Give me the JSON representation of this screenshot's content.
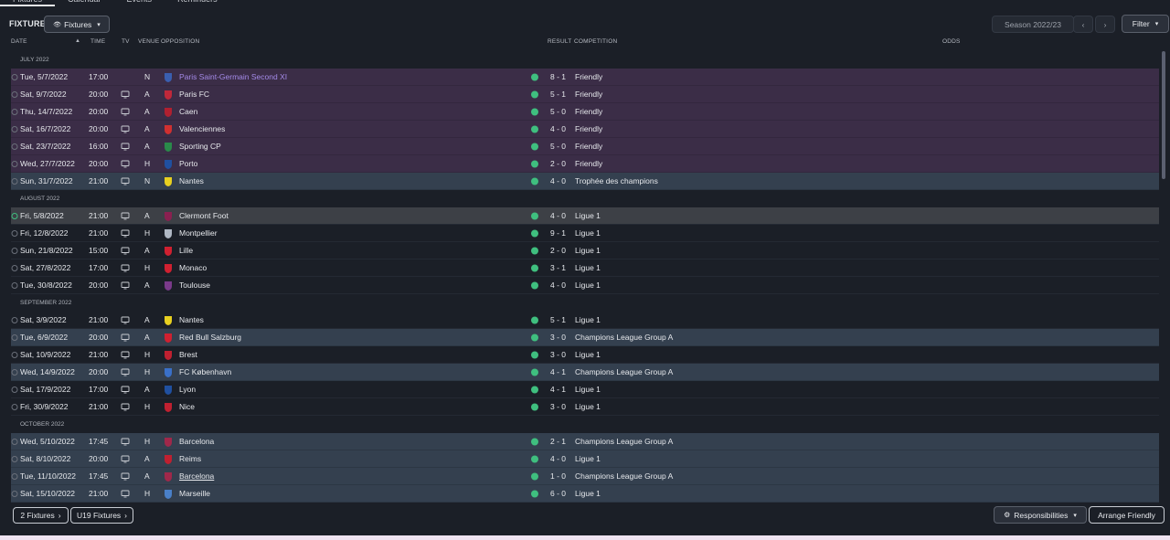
{
  "tabs": [
    "Fixtures",
    "Calendar",
    "Events",
    "Reminders"
  ],
  "header": {
    "title": "FIXTURES",
    "view": "Fixtures",
    "season": "Season 2022/23",
    "filter": "Filter"
  },
  "columns": [
    "DATE",
    "TIME",
    "TV",
    "VENUE",
    "OPPOSITION",
    "RESULT",
    "COMPETITION",
    "ODDS"
  ],
  "months": [
    {
      "label": "JULY 2022",
      "fixtures": [
        {
          "date": "Tue, 5/7/2022",
          "time": "17:00",
          "tv": false,
          "venue": "N",
          "opposition": "Paris Saint-Germain Second XI",
          "result": "8 - 1",
          "competition": "Friendly"
        },
        {
          "date": "Sat, 9/7/2022",
          "time": "20:00",
          "tv": true,
          "venue": "A",
          "opposition": "Paris FC",
          "result": "5 - 1",
          "competition": "Friendly"
        },
        {
          "date": "Thu, 14/7/2022",
          "time": "20:00",
          "tv": true,
          "venue": "A",
          "opposition": "Caen",
          "result": "5 - 0",
          "competition": "Friendly"
        },
        {
          "date": "Sat, 16/7/2022",
          "time": "20:00",
          "tv": true,
          "venue": "A",
          "opposition": "Valenciennes",
          "result": "4 - 0",
          "competition": "Friendly"
        },
        {
          "date": "Sat, 23/7/2022",
          "time": "16:00",
          "tv": true,
          "venue": "A",
          "opposition": "Sporting CP",
          "result": "5 - 0",
          "competition": "Friendly"
        },
        {
          "date": "Wed, 27/7/2022",
          "time": "20:00",
          "tv": true,
          "venue": "H",
          "opposition": "Porto",
          "result": "2 - 0",
          "competition": "Friendly"
        },
        {
          "date": "Sun, 31/7/2022",
          "time": "21:00",
          "tv": true,
          "venue": "N",
          "opposition": "Nantes",
          "result": "4 - 0",
          "competition": "Trophée des champions"
        }
      ]
    },
    {
      "label": "AUGUST 2022",
      "fixtures": [
        {
          "date": "Fri, 5/8/2022",
          "time": "21:00",
          "tv": true,
          "venue": "A",
          "opposition": "Clermont Foot",
          "result": "4 - 0",
          "competition": "Ligue 1"
        },
        {
          "date": "Fri, 12/8/2022",
          "time": "21:00",
          "tv": true,
          "venue": "H",
          "opposition": "Montpellier",
          "result": "9 - 1",
          "competition": "Ligue 1"
        },
        {
          "date": "Sun, 21/8/2022",
          "time": "15:00",
          "tv": true,
          "venue": "A",
          "opposition": "Lille",
          "result": "2 - 0",
          "competition": "Ligue 1"
        },
        {
          "date": "Sat, 27/8/2022",
          "time": "17:00",
          "tv": true,
          "venue": "H",
          "opposition": "Monaco",
          "result": "3 - 1",
          "competition": "Ligue 1"
        },
        {
          "date": "Tue, 30/8/2022",
          "time": "20:00",
          "tv": true,
          "venue": "A",
          "opposition": "Toulouse",
          "result": "4 - 0",
          "competition": "Ligue 1"
        }
      ]
    },
    {
      "label": "SEPTEMBER 2022",
      "fixtures": [
        {
          "date": "Sat, 3/9/2022",
          "time": "21:00",
          "tv": true,
          "venue": "A",
          "opposition": "Nantes",
          "result": "5 - 1",
          "competition": "Ligue 1"
        },
        {
          "date": "Tue, 6/9/2022",
          "time": "20:00",
          "tv": true,
          "venue": "A",
          "opposition": "Red Bull Salzburg",
          "result": "3 - 0",
          "competition": "Champions League Group A"
        },
        {
          "date": "Sat, 10/9/2022",
          "time": "21:00",
          "tv": true,
          "venue": "H",
          "opposition": "Brest",
          "result": "3 - 0",
          "competition": "Ligue 1"
        },
        {
          "date": "Wed, 14/9/2022",
          "time": "20:00",
          "tv": true,
          "venue": "H",
          "opposition": "FC København",
          "result": "4 - 1",
          "competition": "Champions League Group A"
        },
        {
          "date": "Sat, 17/9/2022",
          "time": "17:00",
          "tv": true,
          "venue": "A",
          "opposition": "Lyon",
          "result": "4 - 1",
          "competition": "Ligue 1"
        },
        {
          "date": "Fri, 30/9/2022",
          "time": "21:00",
          "tv": true,
          "venue": "H",
          "opposition": "Nice",
          "result": "3 - 0",
          "competition": "Ligue 1"
        }
      ]
    },
    {
      "label": "OCTOBER 2022",
      "fixtures": [
        {
          "date": "Wed, 5/10/2022",
          "time": "17:45",
          "tv": true,
          "venue": "H",
          "opposition": "Barcelona",
          "result": "2 - 1",
          "competition": "Champions League Group A"
        },
        {
          "date": "Sat, 8/10/2022",
          "time": "20:00",
          "tv": true,
          "venue": "A",
          "opposition": "Reims",
          "result": "4 - 0",
          "competition": "Ligue 1"
        },
        {
          "date": "Tue, 11/10/2022",
          "time": "17:45",
          "tv": true,
          "venue": "A",
          "opposition": "Barcelona",
          "result": "1 - 0",
          "competition": "Champions League Group A"
        },
        {
          "date": "Sat, 15/10/2022",
          "time": "21:00",
          "tv": true,
          "venue": "H",
          "opposition": "Marseille",
          "result": "6 - 0",
          "competition": "Ligue 1"
        }
      ]
    }
  ],
  "footer": {
    "fixtures_count": "2 Fixtures",
    "u19": "U19 Fixtures",
    "responsibilities": "Responsibilities",
    "arrange": "Arrange Friendly"
  }
}
